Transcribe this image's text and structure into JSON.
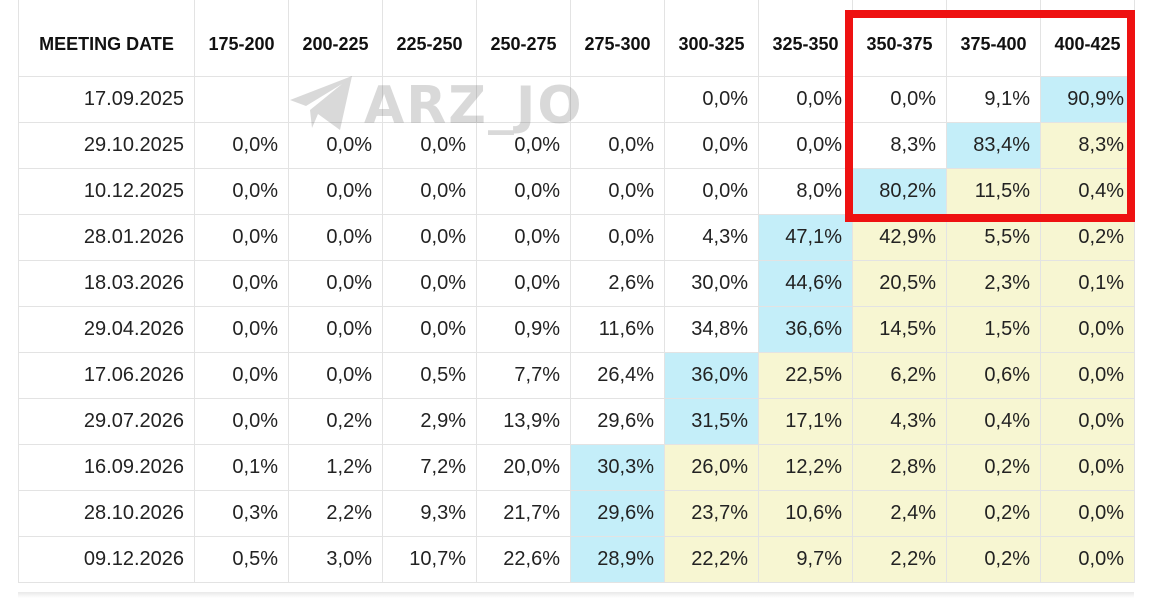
{
  "table": {
    "headers": [
      "MEETING DATE",
      "175-200",
      "200-225",
      "225-250",
      "250-275",
      "275-300",
      "300-325",
      "325-350",
      "350-375",
      "375-400",
      "400-425"
    ],
    "rows": [
      {
        "date": "17.09.2025",
        "cells": [
          {
            "v": "",
            "c": ""
          },
          {
            "v": "",
            "c": ""
          },
          {
            "v": "",
            "c": ""
          },
          {
            "v": "",
            "c": ""
          },
          {
            "v": "",
            "c": ""
          },
          {
            "v": "0,0%",
            "c": ""
          },
          {
            "v": "0,0%",
            "c": ""
          },
          {
            "v": "0,0%",
            "c": ""
          },
          {
            "v": "9,1%",
            "c": ""
          },
          {
            "v": "90,9%",
            "c": "blue"
          }
        ]
      },
      {
        "date": "29.10.2025",
        "cells": [
          {
            "v": "0,0%",
            "c": ""
          },
          {
            "v": "0,0%",
            "c": ""
          },
          {
            "v": "0,0%",
            "c": ""
          },
          {
            "v": "0,0%",
            "c": ""
          },
          {
            "v": "0,0%",
            "c": ""
          },
          {
            "v": "0,0%",
            "c": ""
          },
          {
            "v": "0,0%",
            "c": ""
          },
          {
            "v": "8,3%",
            "c": ""
          },
          {
            "v": "83,4%",
            "c": "blue"
          },
          {
            "v": "8,3%",
            "c": "yellow"
          }
        ]
      },
      {
        "date": "10.12.2025",
        "cells": [
          {
            "v": "0,0%",
            "c": ""
          },
          {
            "v": "0,0%",
            "c": ""
          },
          {
            "v": "0,0%",
            "c": ""
          },
          {
            "v": "0,0%",
            "c": ""
          },
          {
            "v": "0,0%",
            "c": ""
          },
          {
            "v": "0,0%",
            "c": ""
          },
          {
            "v": "8,0%",
            "c": ""
          },
          {
            "v": "80,2%",
            "c": "blue"
          },
          {
            "v": "11,5%",
            "c": "yellow"
          },
          {
            "v": "0,4%",
            "c": "yellow"
          }
        ]
      },
      {
        "date": "28.01.2026",
        "cells": [
          {
            "v": "0,0%",
            "c": ""
          },
          {
            "v": "0,0%",
            "c": ""
          },
          {
            "v": "0,0%",
            "c": ""
          },
          {
            "v": "0,0%",
            "c": ""
          },
          {
            "v": "0,0%",
            "c": ""
          },
          {
            "v": "4,3%",
            "c": ""
          },
          {
            "v": "47,1%",
            "c": "blue"
          },
          {
            "v": "42,9%",
            "c": "yellow"
          },
          {
            "v": "5,5%",
            "c": "yellow"
          },
          {
            "v": "0,2%",
            "c": "yellow"
          }
        ]
      },
      {
        "date": "18.03.2026",
        "cells": [
          {
            "v": "0,0%",
            "c": ""
          },
          {
            "v": "0,0%",
            "c": ""
          },
          {
            "v": "0,0%",
            "c": ""
          },
          {
            "v": "0,0%",
            "c": ""
          },
          {
            "v": "2,6%",
            "c": ""
          },
          {
            "v": "30,0%",
            "c": ""
          },
          {
            "v": "44,6%",
            "c": "blue"
          },
          {
            "v": "20,5%",
            "c": "yellow"
          },
          {
            "v": "2,3%",
            "c": "yellow"
          },
          {
            "v": "0,1%",
            "c": "yellow"
          }
        ]
      },
      {
        "date": "29.04.2026",
        "cells": [
          {
            "v": "0,0%",
            "c": ""
          },
          {
            "v": "0,0%",
            "c": ""
          },
          {
            "v": "0,0%",
            "c": ""
          },
          {
            "v": "0,9%",
            "c": ""
          },
          {
            "v": "11,6%",
            "c": ""
          },
          {
            "v": "34,8%",
            "c": ""
          },
          {
            "v": "36,6%",
            "c": "blue"
          },
          {
            "v": "14,5%",
            "c": "yellow"
          },
          {
            "v": "1,5%",
            "c": "yellow"
          },
          {
            "v": "0,0%",
            "c": "yellow"
          }
        ]
      },
      {
        "date": "17.06.2026",
        "cells": [
          {
            "v": "0,0%",
            "c": ""
          },
          {
            "v": "0,0%",
            "c": ""
          },
          {
            "v": "0,5%",
            "c": ""
          },
          {
            "v": "7,7%",
            "c": ""
          },
          {
            "v": "26,4%",
            "c": ""
          },
          {
            "v": "36,0%",
            "c": "blue"
          },
          {
            "v": "22,5%",
            "c": "yellow"
          },
          {
            "v": "6,2%",
            "c": "yellow"
          },
          {
            "v": "0,6%",
            "c": "yellow"
          },
          {
            "v": "0,0%",
            "c": "yellow"
          }
        ]
      },
      {
        "date": "29.07.2026",
        "cells": [
          {
            "v": "0,0%",
            "c": ""
          },
          {
            "v": "0,2%",
            "c": ""
          },
          {
            "v": "2,9%",
            "c": ""
          },
          {
            "v": "13,9%",
            "c": ""
          },
          {
            "v": "29,6%",
            "c": ""
          },
          {
            "v": "31,5%",
            "c": "blue"
          },
          {
            "v": "17,1%",
            "c": "yellow"
          },
          {
            "v": "4,3%",
            "c": "yellow"
          },
          {
            "v": "0,4%",
            "c": "yellow"
          },
          {
            "v": "0,0%",
            "c": "yellow"
          }
        ]
      },
      {
        "date": "16.09.2026",
        "cells": [
          {
            "v": "0,1%",
            "c": ""
          },
          {
            "v": "1,2%",
            "c": ""
          },
          {
            "v": "7,2%",
            "c": ""
          },
          {
            "v": "20,0%",
            "c": ""
          },
          {
            "v": "30,3%",
            "c": "blue"
          },
          {
            "v": "26,0%",
            "c": "yellow"
          },
          {
            "v": "12,2%",
            "c": "yellow"
          },
          {
            "v": "2,8%",
            "c": "yellow"
          },
          {
            "v": "0,2%",
            "c": "yellow"
          },
          {
            "v": "0,0%",
            "c": "yellow"
          }
        ]
      },
      {
        "date": "28.10.2026",
        "cells": [
          {
            "v": "0,3%",
            "c": ""
          },
          {
            "v": "2,2%",
            "c": ""
          },
          {
            "v": "9,3%",
            "c": ""
          },
          {
            "v": "21,7%",
            "c": ""
          },
          {
            "v": "29,6%",
            "c": "blue"
          },
          {
            "v": "23,7%",
            "c": "yellow"
          },
          {
            "v": "10,6%",
            "c": "yellow"
          },
          {
            "v": "2,4%",
            "c": "yellow"
          },
          {
            "v": "0,2%",
            "c": "yellow"
          },
          {
            "v": "0,0%",
            "c": "yellow"
          }
        ]
      },
      {
        "date": "09.12.2026",
        "cells": [
          {
            "v": "0,5%",
            "c": ""
          },
          {
            "v": "3,0%",
            "c": ""
          },
          {
            "v": "10,7%",
            "c": ""
          },
          {
            "v": "22,6%",
            "c": ""
          },
          {
            "v": "28,9%",
            "c": "blue"
          },
          {
            "v": "22,2%",
            "c": "yellow"
          },
          {
            "v": "9,7%",
            "c": "yellow"
          },
          {
            "v": "2,2%",
            "c": "yellow"
          },
          {
            "v": "0,2%",
            "c": "yellow"
          },
          {
            "v": "0,0%",
            "c": "yellow"
          }
        ]
      }
    ]
  },
  "colors": {
    "highlight_blue": "#c4eef9",
    "highlight_yellow": "#f7f6d2",
    "annotation_red": "#ee1111"
  },
  "watermark": {
    "text": "ARZ_JO",
    "icon": "paper-plane-icon"
  }
}
